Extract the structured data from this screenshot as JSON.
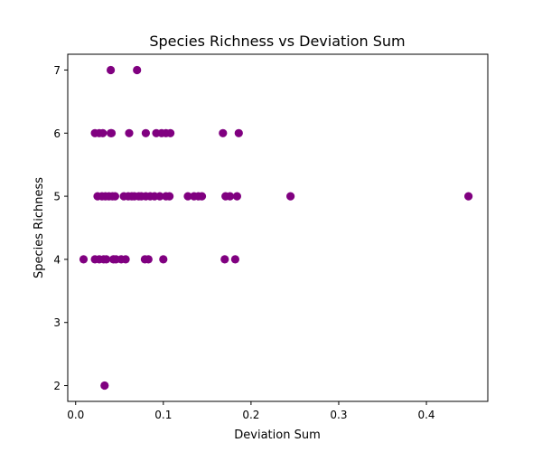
{
  "chart_data": {
    "type": "scatter",
    "title": "Species Richness vs Deviation Sum",
    "xlabel": "Deviation Sum",
    "ylabel": "Species Richness",
    "xlim": [
      -0.009,
      0.47
    ],
    "ylim": [
      1.75,
      7.25
    ],
    "xticks": [
      0.0,
      0.1,
      0.2,
      0.3,
      0.4
    ],
    "xtick_labels": [
      "0.0",
      "0.1",
      "0.2",
      "0.3",
      "0.4"
    ],
    "yticks": [
      2,
      3,
      4,
      5,
      6,
      7
    ],
    "ytick_labels": [
      "2",
      "3",
      "4",
      "5",
      "6",
      "7"
    ],
    "grid": false,
    "marker_color": "#800080",
    "points": [
      {
        "x": 0.04,
        "y": 7
      },
      {
        "x": 0.07,
        "y": 7
      },
      {
        "x": 0.022,
        "y": 6
      },
      {
        "x": 0.027,
        "y": 6
      },
      {
        "x": 0.031,
        "y": 6
      },
      {
        "x": 0.04,
        "y": 6
      },
      {
        "x": 0.041,
        "y": 6
      },
      {
        "x": 0.061,
        "y": 6
      },
      {
        "x": 0.08,
        "y": 6
      },
      {
        "x": 0.092,
        "y": 6
      },
      {
        "x": 0.098,
        "y": 6
      },
      {
        "x": 0.103,
        "y": 6
      },
      {
        "x": 0.108,
        "y": 6
      },
      {
        "x": 0.168,
        "y": 6
      },
      {
        "x": 0.186,
        "y": 6
      },
      {
        "x": 0.025,
        "y": 5
      },
      {
        "x": 0.03,
        "y": 5
      },
      {
        "x": 0.034,
        "y": 5
      },
      {
        "x": 0.038,
        "y": 5
      },
      {
        "x": 0.042,
        "y": 5
      },
      {
        "x": 0.045,
        "y": 5
      },
      {
        "x": 0.055,
        "y": 5
      },
      {
        "x": 0.06,
        "y": 5
      },
      {
        "x": 0.064,
        "y": 5
      },
      {
        "x": 0.067,
        "y": 5
      },
      {
        "x": 0.072,
        "y": 5
      },
      {
        "x": 0.075,
        "y": 5
      },
      {
        "x": 0.08,
        "y": 5
      },
      {
        "x": 0.085,
        "y": 5
      },
      {
        "x": 0.09,
        "y": 5
      },
      {
        "x": 0.096,
        "y": 5
      },
      {
        "x": 0.103,
        "y": 5
      },
      {
        "x": 0.107,
        "y": 5
      },
      {
        "x": 0.128,
        "y": 5
      },
      {
        "x": 0.135,
        "y": 5
      },
      {
        "x": 0.14,
        "y": 5
      },
      {
        "x": 0.144,
        "y": 5
      },
      {
        "x": 0.171,
        "y": 5
      },
      {
        "x": 0.176,
        "y": 5
      },
      {
        "x": 0.184,
        "y": 5
      },
      {
        "x": 0.245,
        "y": 5
      },
      {
        "x": 0.448,
        "y": 5
      },
      {
        "x": 0.009,
        "y": 4
      },
      {
        "x": 0.022,
        "y": 4
      },
      {
        "x": 0.027,
        "y": 4
      },
      {
        "x": 0.032,
        "y": 4
      },
      {
        "x": 0.035,
        "y": 4
      },
      {
        "x": 0.043,
        "y": 4
      },
      {
        "x": 0.046,
        "y": 4
      },
      {
        "x": 0.052,
        "y": 4
      },
      {
        "x": 0.057,
        "y": 4
      },
      {
        "x": 0.079,
        "y": 4
      },
      {
        "x": 0.083,
        "y": 4
      },
      {
        "x": 0.1,
        "y": 4
      },
      {
        "x": 0.17,
        "y": 4
      },
      {
        "x": 0.182,
        "y": 4
      },
      {
        "x": 0.033,
        "y": 2
      }
    ]
  }
}
